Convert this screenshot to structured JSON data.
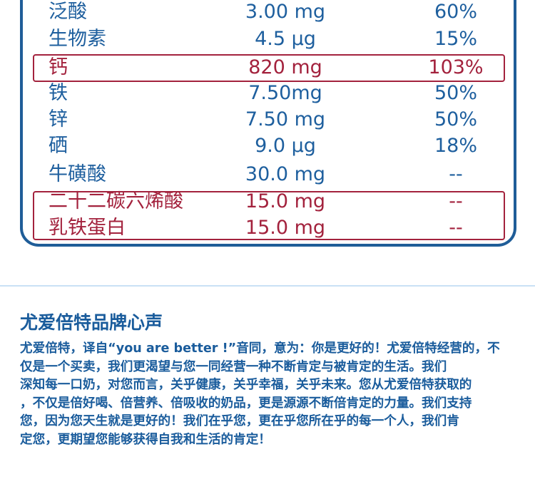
{
  "nutrition_rows": [
    {
      "name": "泛酸",
      "amount": "3.00 mg",
      "percent": "60%",
      "highlight": false
    },
    {
      "name": "生物素",
      "amount": "4.5 µg",
      "percent": "15%",
      "highlight": false
    },
    {
      "name": "钙",
      "amount": "820 mg",
      "percent": "103%",
      "highlight": true
    },
    {
      "name": "铁",
      "amount": "7.50mg",
      "percent": "50%",
      "highlight": false
    },
    {
      "name": "锌",
      "amount": "7.50 mg",
      "percent": "50%",
      "highlight": false
    },
    {
      "name": "硒",
      "amount": "9.0 µg",
      "percent": "18%",
      "highlight": false
    },
    {
      "name": "牛磺酸",
      "amount": "30.0 mg",
      "percent": "--",
      "highlight": false
    },
    {
      "name": "二十二碳六烯酸",
      "amount": "15.0 mg",
      "percent": "--",
      "highlight": true
    },
    {
      "name": "乳铁蛋白",
      "amount": "15.0 mg",
      "percent": "--",
      "highlight": true
    }
  ],
  "colors": {
    "blue": "#1e5f9e",
    "red": "#a3223d",
    "divider": "#c9e1f5"
  },
  "brand": {
    "heading": "尤爱倍特品牌心声",
    "lines": [
      "尤爱倍特，译自“you are better !”音同，意为：你是更好的！尤爱倍特经营的，不",
      "仅是一个买卖，我们更渴望与您一同经营一种不断肯定与被肯定的生活。我们",
      "深知每一口奶，对您而言，关乎健康，关乎幸福，关乎未来。您从尤爱倍特获取的",
      "，不仅是倍好喝、倍营养、倍吸收的奶品，更是源源不断倍肯定的力量。我们支持",
      "您，因为您天生就是更好的！我们在乎您，更在乎您所在乎的每一个人，我们肯",
      "定您，更期望您能够获得自我和生活的肯定！"
    ]
  }
}
